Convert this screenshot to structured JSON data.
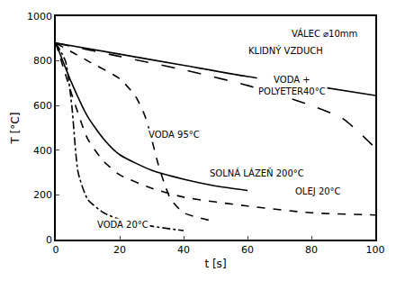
{
  "chart_data": {
    "type": "line",
    "x_label": "t [s]",
    "y_label": "T [°C]",
    "xlim": [
      0,
      100
    ],
    "ylim": [
      0,
      1000
    ],
    "xticks": [
      0,
      20,
      40,
      60,
      80,
      100
    ],
    "yticks": [
      0,
      200,
      400,
      600,
      800,
      1000
    ],
    "grid": false,
    "annotations": [
      {
        "text": "VÁLEC ⌀10mm",
        "x": 84,
        "y": 925
      }
    ],
    "series": [
      {
        "name": "KLIDNÝ VZDUCH",
        "color": "#000000",
        "line_style": "solid",
        "label": {
          "x": 72,
          "y": 845
        },
        "x": [
          0,
          20,
          40,
          60,
          80,
          100
        ],
        "values": [
          880,
          830,
          780,
          730,
          690,
          645
        ]
      },
      {
        "name": "VODA +\nPOLYETER40°C",
        "color": "#000000",
        "line_style": "longdash",
        "label": {
          "x": 74,
          "y": 690
        },
        "x": [
          0,
          20,
          40,
          60,
          80,
          90,
          100
        ],
        "values": [
          880,
          820,
          760,
          690,
          600,
          540,
          410
        ]
      },
      {
        "name": "VODA 95°C",
        "color": "#000000",
        "line_style": "dash",
        "label": {
          "x": 37,
          "y": 470
        },
        "x": [
          0,
          10,
          20,
          25,
          28,
          30,
          32,
          34,
          36,
          40,
          50
        ],
        "values": [
          880,
          800,
          720,
          640,
          550,
          450,
          340,
          250,
          180,
          120,
          80
        ]
      },
      {
        "name": "SOLNÁ LÁZEŇ 200°C",
        "color": "#000000",
        "line_style": "solid",
        "label": {
          "x": 63,
          "y": 300
        },
        "x": [
          0,
          5,
          10,
          15,
          20,
          30,
          40,
          50,
          60
        ],
        "values": [
          880,
          700,
          550,
          450,
          380,
          310,
          270,
          240,
          220
        ]
      },
      {
        "name": "OLEJ 20°C",
        "color": "#000000",
        "line_style": "dash",
        "label": {
          "x": 82,
          "y": 215
        },
        "x": [
          0,
          5,
          10,
          15,
          20,
          30,
          40,
          60,
          80,
          100
        ],
        "values": [
          880,
          650,
          450,
          350,
          290,
          230,
          190,
          150,
          120,
          110
        ]
      },
      {
        "name": "VODA 20°C",
        "color": "#000000",
        "line_style": "dashdot",
        "label": {
          "x": 21,
          "y": 65
        },
        "x": [
          0,
          3,
          5,
          7,
          10,
          15,
          20,
          30,
          40
        ],
        "values": [
          880,
          800,
          600,
          300,
          180,
          120,
          90,
          60,
          40
        ]
      }
    ]
  }
}
